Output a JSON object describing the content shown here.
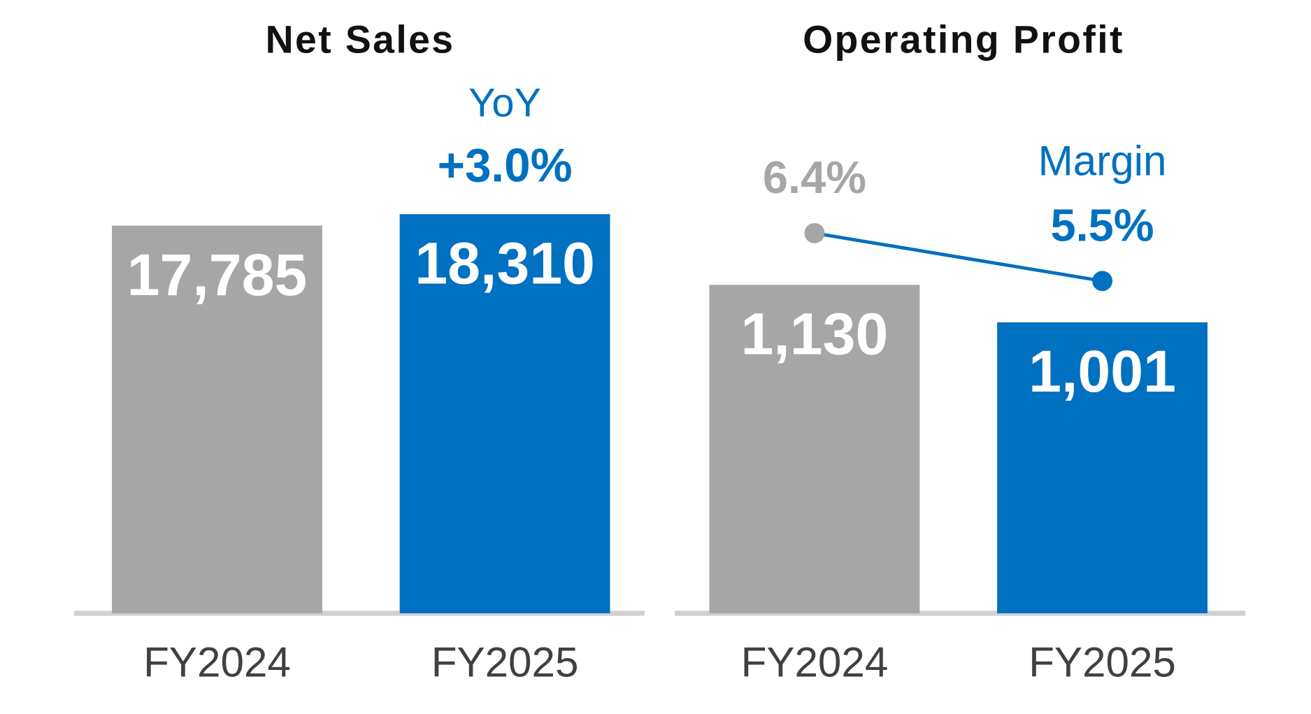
{
  "chart_data": [
    {
      "type": "bar",
      "title": "Net Sales",
      "categories": [
        "FY2024",
        "FY2025"
      ],
      "values": [
        17785,
        18310
      ],
      "value_labels": [
        "17,785",
        "18,310"
      ],
      "colors": [
        "#a6a6a6",
        "#0070c0"
      ],
      "ylim": [
        0,
        20000
      ],
      "annotations": [
        "YoY",
        "+3.0%"
      ]
    },
    {
      "type": "bar",
      "title": "Operating Profit",
      "categories": [
        "FY2024",
        "FY2025"
      ],
      "values": [
        1130,
        1001
      ],
      "value_labels": [
        "1,130",
        "1,001"
      ],
      "colors": [
        "#a6a6a6",
        "#0070c0"
      ],
      "ylim": [
        0,
        1500
      ],
      "series": [
        {
          "name": "Margin",
          "axis": "y2",
          "color": "#0070c0",
          "values": [
            6.4,
            5.5
          ],
          "value_labels": [
            "6.4%",
            "5.5%"
          ],
          "point_colors": [
            "#a6a6a6",
            "#0070c0"
          ]
        }
      ],
      "y2lim": [
        -0.75,
        7.45
      ]
    }
  ]
}
